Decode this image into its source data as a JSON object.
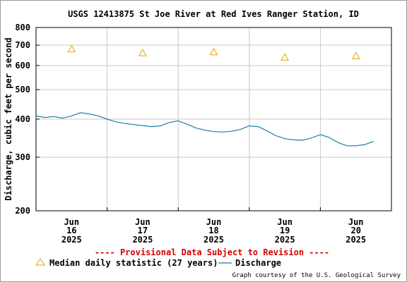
{
  "chart_data": {
    "type": "line",
    "title": "USGS 12413875 St Joe River at Red Ives Ranger Station, ID",
    "ylabel": "Discharge, cubic feet per second",
    "yscale": "log",
    "ylim": [
      200,
      800
    ],
    "yticks": [
      200,
      300,
      400,
      500,
      600,
      700,
      800
    ],
    "ytick_labels": [
      "200",
      "300",
      "400",
      "500",
      "600",
      "700",
      "800"
    ],
    "xlim": [
      "2025-06-15 12:00",
      "2025-06-20 12:00"
    ],
    "xtick_labels": [
      {
        "month": "Jun",
        "day": "16",
        "year": "2025"
      },
      {
        "month": "Jun",
        "day": "17",
        "year": "2025"
      },
      {
        "month": "Jun",
        "day": "18",
        "year": "2025"
      },
      {
        "month": "Jun",
        "day": "19",
        "year": "2025"
      },
      {
        "month": "Jun",
        "day": "20",
        "year": "2025"
      }
    ],
    "grid": true,
    "provisional_note": "---- Provisional Data Subject to Revision ----",
    "legend": {
      "median_label": "Median daily statistic (27 years)",
      "discharge_label": "Discharge"
    },
    "credit": "Graph courtesy of the U.S. Geological Survey",
    "colors": {
      "discharge": "#1a7fa8",
      "median": "#e8a200",
      "provisional": "#d40000",
      "grid": "#c8c8c8"
    },
    "series": [
      {
        "name": "Median daily statistic (27 years)",
        "kind": "marker",
        "x": [
          "2025-06-16",
          "2025-06-17",
          "2025-06-18",
          "2025-06-19",
          "2025-06-20"
        ],
        "y": [
          680,
          660,
          665,
          638,
          645
        ]
      },
      {
        "name": "Discharge",
        "kind": "line",
        "x": [
          "2025-06-15 12:00",
          "2025-06-15 15:00",
          "2025-06-15 18:00",
          "2025-06-15 21:00",
          "2025-06-16 00:00",
          "2025-06-16 03:00",
          "2025-06-16 06:00",
          "2025-06-16 09:00",
          "2025-06-16 12:00",
          "2025-06-16 15:00",
          "2025-06-16 18:00",
          "2025-06-16 21:00",
          "2025-06-17 00:00",
          "2025-06-17 03:00",
          "2025-06-17 06:00",
          "2025-06-17 09:00",
          "2025-06-17 12:00",
          "2025-06-17 15:00",
          "2025-06-17 18:00",
          "2025-06-17 21:00",
          "2025-06-18 00:00",
          "2025-06-18 03:00",
          "2025-06-18 06:00",
          "2025-06-18 09:00",
          "2025-06-18 12:00",
          "2025-06-18 15:00",
          "2025-06-18 18:00",
          "2025-06-18 21:00",
          "2025-06-19 00:00",
          "2025-06-19 03:00",
          "2025-06-19 06:00",
          "2025-06-19 09:00",
          "2025-06-19 12:00",
          "2025-06-19 15:00",
          "2025-06-19 18:00",
          "2025-06-19 21:00",
          "2025-06-20 00:00",
          "2025-06-20 03:00",
          "2025-06-20 06:00"
        ],
        "y": [
          410,
          405,
          408,
          403,
          410,
          420,
          416,
          410,
          400,
          392,
          387,
          384,
          381,
          378,
          380,
          390,
          395,
          385,
          374,
          368,
          364,
          363,
          365,
          370,
          380,
          378,
          366,
          353,
          345,
          342,
          341,
          347,
          356,
          348,
          335,
          327,
          327,
          330,
          338
        ]
      }
    ]
  }
}
